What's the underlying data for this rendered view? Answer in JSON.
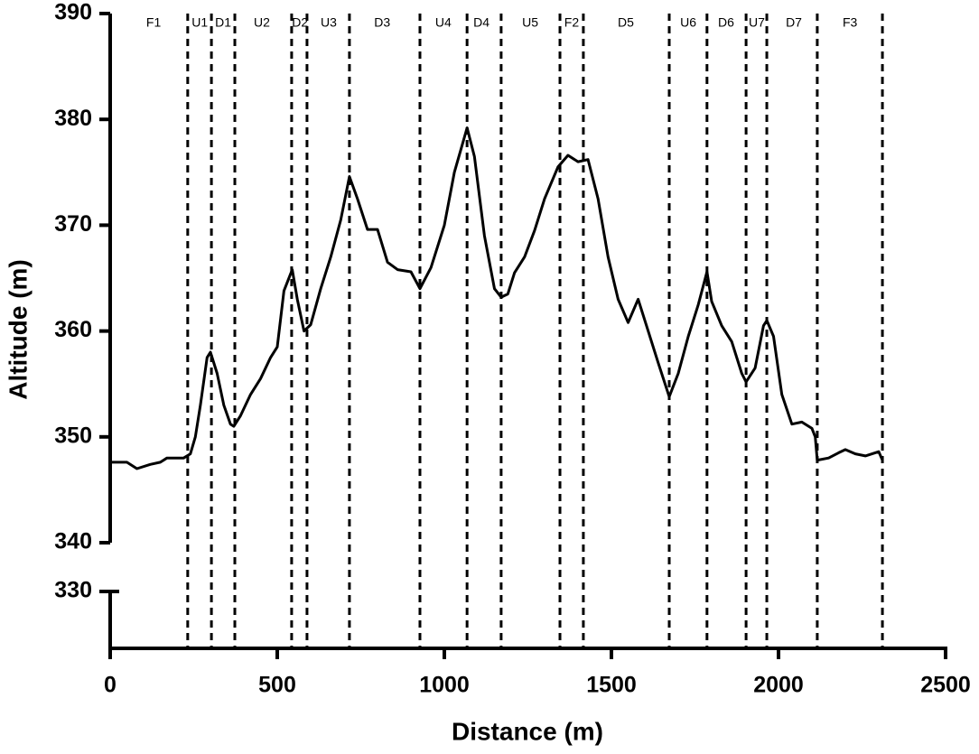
{
  "chart_data": {
    "type": "line",
    "xlabel": "Distance (m)",
    "ylabel": "Altitude (m)",
    "xlim": [
      0,
      2500
    ],
    "xticks": [
      0,
      500,
      1000,
      1500,
      2000,
      2500
    ],
    "ylim": [
      340,
      390
    ],
    "yticks": [
      340,
      350,
      360,
      370,
      380,
      390
    ],
    "y_break": {
      "ylim": [
        324.6,
        330
      ],
      "yticks": [
        330
      ]
    },
    "boundaries": [
      232,
      303,
      373,
      543,
      589,
      716,
      927,
      1068,
      1170,
      1346,
      1416,
      1673,
      1786,
      1903,
      1965,
      2116,
      2311
    ],
    "segments": [
      {
        "label": "F1",
        "x": 130
      },
      {
        "label": "U1",
        "x": 268
      },
      {
        "label": "D1",
        "x": 338
      },
      {
        "label": "U2",
        "x": 454
      },
      {
        "label": "D2",
        "x": 568
      },
      {
        "label": "U3",
        "x": 654
      },
      {
        "label": "D3",
        "x": 814
      },
      {
        "label": "U4",
        "x": 997
      },
      {
        "label": "D4",
        "x": 1111
      },
      {
        "label": "U5",
        "x": 1257
      },
      {
        "label": "F2",
        "x": 1381
      },
      {
        "label": "D5",
        "x": 1543
      },
      {
        "label": "U6",
        "x": 1730
      },
      {
        "label": "D6",
        "x": 1843
      },
      {
        "label": "U7",
        "x": 1935
      },
      {
        "label": "D7",
        "x": 2046
      },
      {
        "label": "F3",
        "x": 2214
      }
    ],
    "x": [
      0,
      50,
      80,
      120,
      150,
      170,
      220,
      240,
      255,
      270,
      290,
      300,
      320,
      340,
      360,
      370,
      390,
      420,
      450,
      480,
      500,
      520,
      545,
      560,
      580,
      600,
      630,
      660,
      690,
      716,
      740,
      770,
      800,
      830,
      860,
      900,
      927,
      960,
      1000,
      1030,
      1068,
      1090,
      1120,
      1150,
      1170,
      1190,
      1210,
      1240,
      1270,
      1300,
      1340,
      1370,
      1400,
      1430,
      1460,
      1490,
      1520,
      1550,
      1580,
      1610,
      1640,
      1673,
      1700,
      1730,
      1760,
      1786,
      1800,
      1830,
      1860,
      1890,
      1903,
      1930,
      1955,
      1965,
      1985,
      2010,
      2040,
      2070,
      2100,
      2110,
      2116,
      2150,
      2180,
      2200,
      2230,
      2260,
      2300,
      2311
    ],
    "series": [
      {
        "color": "#000000",
        "values": [
          347.6,
          347.6,
          347.0,
          347.4,
          347.6,
          348.0,
          348.0,
          348.4,
          350,
          353,
          357.5,
          358.0,
          356,
          353,
          351.2,
          351.0,
          352,
          354,
          355.5,
          357.5,
          358.5,
          363.8,
          365.8,
          363,
          360.0,
          360.6,
          364,
          367,
          370.5,
          374.6,
          372.5,
          369.6,
          369.6,
          366.5,
          365.8,
          365.6,
          364.0,
          366,
          370,
          375,
          379.2,
          376.5,
          369,
          364,
          363.2,
          363.5,
          365.5,
          367,
          369.5,
          372.5,
          375.5,
          376.6,
          376.0,
          376.2,
          372.5,
          367,
          363,
          360.8,
          363.0,
          360.0,
          357,
          353.8,
          356,
          359.5,
          362.5,
          365.6,
          362.8,
          360.5,
          359,
          356,
          355.2,
          356.5,
          360.5,
          361.0,
          359.5,
          354,
          351.2,
          351.4,
          350.8,
          350.0,
          347.8,
          348.0,
          348.5,
          348.8,
          348.4,
          348.2,
          348.6,
          347.8
        ]
      }
    ]
  }
}
